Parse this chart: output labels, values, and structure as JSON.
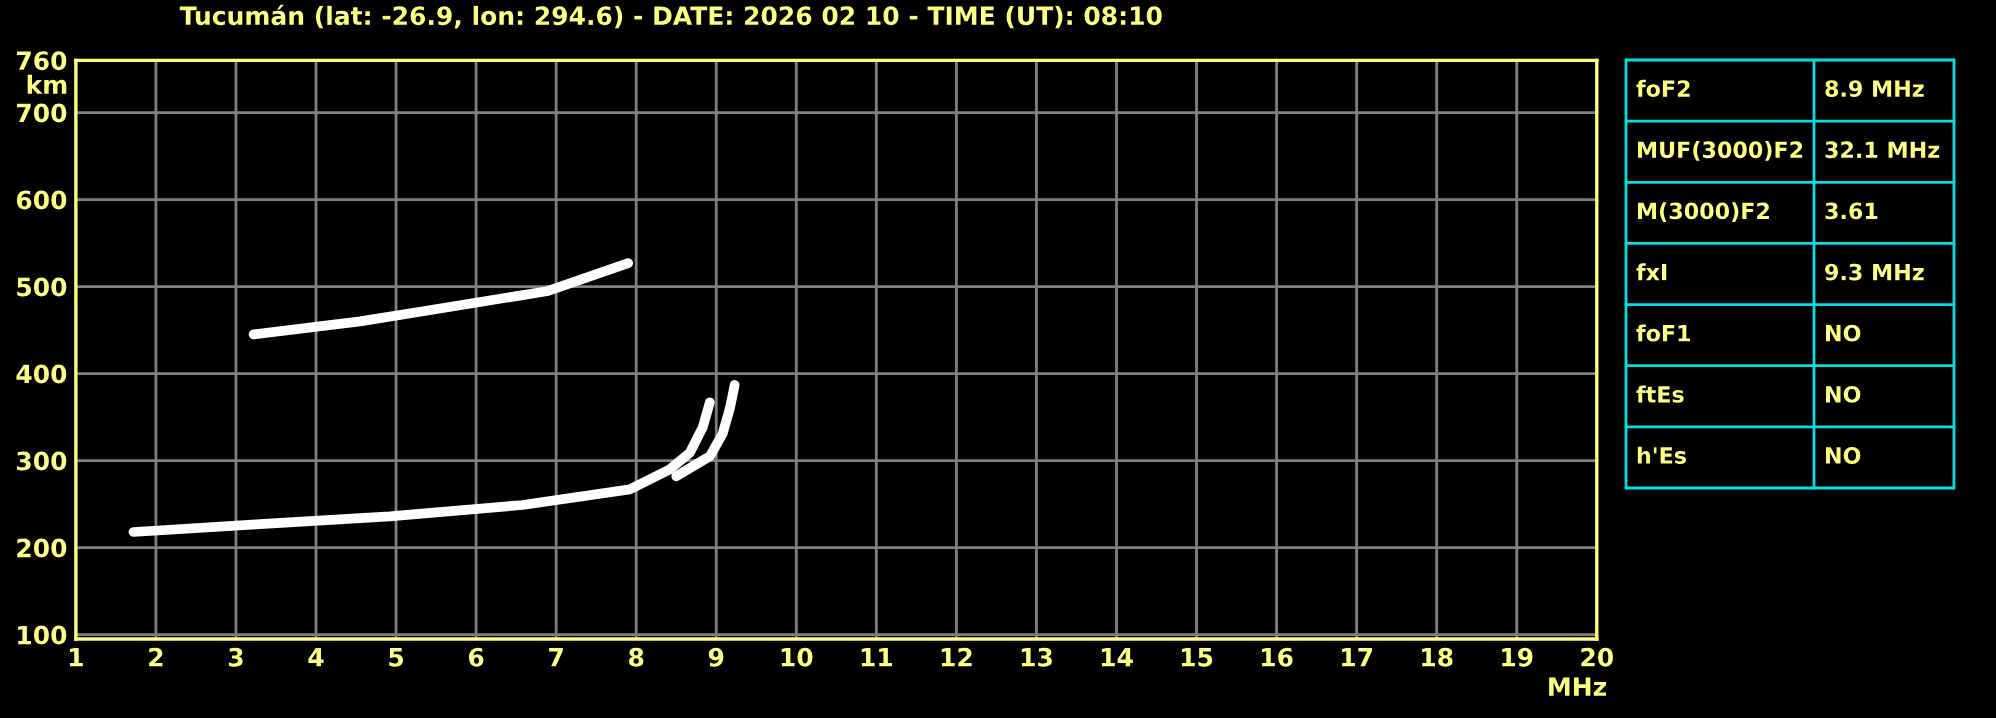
{
  "chart_data": {
    "type": "line",
    "title": "Tucumán (lat: -26.9, lon: 294.6) - DATE: 2026 02 10 - TIME (UT): 08:10",
    "xlabel": "MHz",
    "ylabel": "km",
    "xlim": [
      1,
      20
    ],
    "xticks": [
      1,
      2,
      3,
      4,
      5,
      6,
      7,
      8,
      9,
      10,
      11,
      12,
      13,
      14,
      15,
      16,
      17,
      18,
      19,
      20
    ],
    "ylim": [
      95,
      760
    ],
    "yticks": [
      100,
      200,
      300,
      400,
      500,
      600,
      700,
      760
    ],
    "grid": true,
    "marker": "none",
    "line_style": "solid",
    "series": [
      {
        "color": "#ffffff",
        "x": [
          1.72,
          3.3,
          4.92,
          6.58,
          7.92,
          8.42,
          8.67,
          8.83,
          8.92
        ],
        "values": [
          218,
          227,
          236,
          249,
          267,
          290,
          309,
          338,
          367
        ]
      },
      {
        "color": "#ffffff",
        "x": [
          8.5,
          8.92,
          9.08,
          9.17,
          9.23
        ],
        "values": [
          282,
          305,
          331,
          360,
          387
        ]
      },
      {
        "color": "#ffffff",
        "x": [
          3.22,
          4.55,
          5.3,
          6.9,
          7.9
        ],
        "values": [
          445,
          460,
          471,
          495,
          527
        ]
      }
    ],
    "annotations": [
      "foF2",
      "8.9 MHz",
      "MUF(3000)F2",
      "32.1 MHz",
      "M(3000)F2",
      "3.61",
      "fxI",
      "9.3 MHz",
      "foF1",
      "NO",
      "ftEs",
      "NO",
      "h'Es",
      "NO"
    ]
  }
}
